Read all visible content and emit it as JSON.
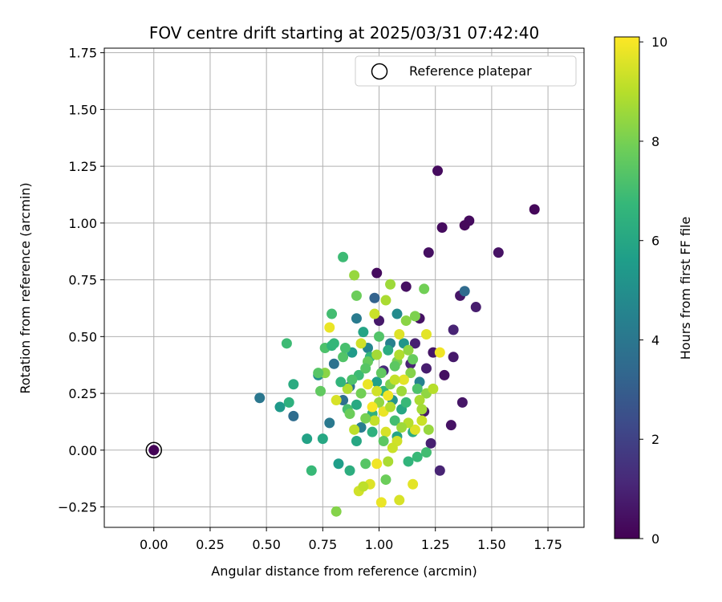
{
  "chart_data": {
    "type": "scatter",
    "title": "FOV centre drift starting at 2025/03/31 07:42:40",
    "xlabel": "Angular distance from reference (arcmin)",
    "ylabel": "Rotation from reference (arcmin)",
    "xlim": [
      -0.22,
      1.91
    ],
    "ylim": [
      -0.34,
      1.77
    ],
    "xticks": [
      "0.00",
      "0.25",
      "0.50",
      "0.75",
      "1.00",
      "1.25",
      "1.50",
      "1.75"
    ],
    "yticks": [
      "−0.25",
      "0.00",
      "0.25",
      "0.50",
      "0.75",
      "1.00",
      "1.25",
      "1.50",
      "1.75"
    ],
    "grid": true,
    "legend": {
      "placement": "top-right",
      "entries": [
        "Reference platepar"
      ]
    },
    "reference_point": {
      "x": 0.0,
      "y": 0.0
    },
    "colorbar": {
      "label": "Hours from first FF file",
      "colormap": "viridis",
      "range": [
        0,
        10.1
      ],
      "ticks": [
        "0",
        "2",
        "4",
        "6",
        "8",
        "10"
      ]
    },
    "colormap_stops": [
      "#440154",
      "#482878",
      "#3e4989",
      "#31688e",
      "#26828e",
      "#1f9e89",
      "#35b779",
      "#6ece58",
      "#b5de2b",
      "#fde725"
    ],
    "series": [
      {
        "marker": "circle",
        "points": [
          [
            0.0,
            0.0,
            0.1
          ],
          [
            1.26,
            1.23,
            0.3
          ],
          [
            1.69,
            1.06,
            0.2
          ],
          [
            1.4,
            1.01,
            0.3
          ],
          [
            1.38,
            0.99,
            0.2
          ],
          [
            1.28,
            0.98,
            0.3
          ],
          [
            1.53,
            0.87,
            0.5
          ],
          [
            1.22,
            0.87,
            0.4
          ],
          [
            0.99,
            0.78,
            0.3
          ],
          [
            1.12,
            0.72,
            0.4
          ],
          [
            1.36,
            0.68,
            0.6
          ],
          [
            1.43,
            0.63,
            0.8
          ],
          [
            1.18,
            0.58,
            0.5
          ],
          [
            1.0,
            0.57,
            0.7
          ],
          [
            1.33,
            0.53,
            1.0
          ],
          [
            1.16,
            0.47,
            0.9
          ],
          [
            1.24,
            0.43,
            0.6
          ],
          [
            1.33,
            0.41,
            0.7
          ],
          [
            1.14,
            0.38,
            1.0
          ],
          [
            1.21,
            0.36,
            0.8
          ],
          [
            1.29,
            0.33,
            0.4
          ],
          [
            1.37,
            0.21,
            0.6
          ],
          [
            1.2,
            0.17,
            0.7
          ],
          [
            1.32,
            0.11,
            0.5
          ],
          [
            1.23,
            0.03,
            0.9
          ],
          [
            1.27,
            -0.09,
            1.0
          ],
          [
            1.02,
            0.35,
            1.2
          ],
          [
            1.38,
            0.7,
            3.5
          ],
          [
            0.98,
            0.67,
            3.2
          ],
          [
            0.47,
            0.23,
            4.0
          ],
          [
            0.62,
            0.15,
            3.6
          ],
          [
            0.8,
            0.38,
            3.8
          ],
          [
            0.9,
            0.58,
            4.2
          ],
          [
            1.05,
            0.47,
            4.4
          ],
          [
            0.87,
            0.28,
            3.9
          ],
          [
            0.95,
            0.45,
            4.6
          ],
          [
            1.08,
            0.6,
            4.8
          ],
          [
            0.92,
            0.1,
            4.3
          ],
          [
            0.73,
            0.33,
            5.0
          ],
          [
            1.18,
            0.3,
            4.5
          ],
          [
            0.78,
            0.12,
            4.1
          ],
          [
            0.84,
            0.22,
            3.7
          ],
          [
            0.56,
            0.19,
            5.4
          ],
          [
            0.68,
            0.05,
            5.8
          ],
          [
            0.82,
            -0.06,
            5.6
          ],
          [
            0.62,
            0.29,
            6.2
          ],
          [
            0.6,
            0.21,
            6.4
          ],
          [
            0.7,
            -0.09,
            6.8
          ],
          [
            0.84,
            0.85,
            6.9
          ],
          [
            0.59,
            0.47,
            6.9
          ],
          [
            0.79,
            0.6,
            7.0
          ],
          [
            0.87,
            -0.09,
            6.3
          ],
          [
            0.75,
            0.05,
            6.0
          ],
          [
            0.93,
            0.52,
            5.9
          ],
          [
            0.88,
            0.43,
            5.5
          ],
          [
            1.06,
            0.22,
            5.2
          ],
          [
            0.99,
            0.3,
            5.7
          ],
          [
            1.11,
            0.47,
            5.3
          ],
          [
            0.76,
            0.45,
            7.2
          ],
          [
            0.74,
            0.26,
            7.6
          ],
          [
            0.79,
            0.46,
            6.6
          ],
          [
            0.9,
            0.2,
            6.1
          ],
          [
            0.96,
            0.41,
            6.7
          ],
          [
            1.02,
            0.26,
            6.5
          ],
          [
            1.1,
            0.18,
            6.0
          ],
          [
            1.15,
            0.08,
            6.2
          ],
          [
            1.08,
            0.06,
            5.9
          ],
          [
            0.97,
            0.16,
            6.4
          ],
          [
            0.91,
            0.33,
            6.9
          ],
          [
            0.86,
            0.18,
            7.1
          ],
          [
            0.94,
            -0.06,
            7.4
          ],
          [
            1.03,
            -0.13,
            7.8
          ],
          [
            1.21,
            -0.01,
            7.0
          ],
          [
            1.13,
            -0.05,
            6.6
          ],
          [
            1.17,
            -0.03,
            6.8
          ],
          [
            0.81,
            -0.27,
            8.2
          ],
          [
            1.04,
            -0.05,
            8.8
          ],
          [
            1.08,
            0.39,
            8.0
          ],
          [
            1.14,
            0.34,
            8.2
          ],
          [
            1.21,
            0.25,
            8.4
          ],
          [
            0.89,
            0.77,
            8.5
          ],
          [
            0.9,
            0.68,
            7.8
          ],
          [
            1.05,
            0.73,
            8.6
          ],
          [
            1.09,
            0.42,
            8.9
          ],
          [
            1.12,
            0.57,
            8.3
          ],
          [
            1.16,
            0.59,
            8.1
          ],
          [
            1.2,
            0.71,
            7.9
          ],
          [
            0.99,
            0.42,
            8.7
          ],
          [
            1.03,
            0.66,
            8.8
          ],
          [
            1.07,
            0.37,
            7.5
          ],
          [
            0.95,
            0.39,
            7.7
          ],
          [
            0.84,
            0.41,
            7.3
          ],
          [
            0.92,
            0.25,
            7.9
          ],
          [
            1.0,
            0.21,
            8.4
          ],
          [
            1.1,
            0.26,
            8.6
          ],
          [
            1.18,
            0.22,
            8.8
          ],
          [
            1.24,
            0.27,
            9.0
          ],
          [
            0.78,
            0.54,
            9.8
          ],
          [
            0.92,
            0.47,
            9.4
          ],
          [
            0.98,
            0.6,
            9.3
          ],
          [
            1.09,
            0.51,
            9.6
          ],
          [
            1.21,
            0.51,
            9.7
          ],
          [
            1.27,
            0.43,
            9.9
          ],
          [
            0.81,
            0.22,
            9.5
          ],
          [
            0.95,
            0.29,
            9.8
          ],
          [
            1.04,
            0.24,
            9.9
          ],
          [
            1.11,
            0.31,
            9.7
          ],
          [
            1.16,
            0.09,
            9.6
          ],
          [
            1.08,
            0.04,
            9.4
          ],
          [
            0.98,
            0.13,
            9.2
          ],
          [
            0.89,
            0.09,
            9.1
          ],
          [
            1.03,
            0.08,
            9.5
          ],
          [
            0.91,
            -0.18,
            9.4
          ],
          [
            0.96,
            -0.15,
            9.6
          ],
          [
            1.01,
            -0.23,
            9.8
          ],
          [
            1.09,
            -0.22,
            9.5
          ],
          [
            1.15,
            -0.15,
            9.7
          ],
          [
            0.99,
            -0.06,
            9.9
          ],
          [
            1.06,
            0.01,
            9.3
          ],
          [
            0.93,
            -0.16,
            9.1
          ],
          [
            1.02,
            0.17,
            9.8
          ],
          [
            0.97,
            0.19,
            10.0
          ],
          [
            1.13,
            0.12,
            9.0
          ],
          [
            0.86,
            0.27,
            8.9
          ],
          [
            1.19,
            0.18,
            8.7
          ],
          [
            1.22,
            0.09,
            8.5
          ],
          [
            0.76,
            0.34,
            8.3
          ],
          [
            1.05,
            0.29,
            8.1
          ],
          [
            1.01,
            0.34,
            7.6
          ],
          [
            0.94,
            0.36,
            7.4
          ],
          [
            0.88,
            0.31,
            7.2
          ],
          [
            1.07,
            0.13,
            7.0
          ],
          [
            1.12,
            0.21,
            6.8
          ],
          [
            0.83,
            0.3,
            6.6
          ],
          [
            0.97,
            0.08,
            6.4
          ],
          [
            1.04,
            0.44,
            6.2
          ],
          [
            0.9,
            0.04,
            6.0
          ],
          [
            1.15,
            0.4,
            7.7
          ],
          [
            0.85,
            0.45,
            7.1
          ],
          [
            0.8,
            0.47,
            6.7
          ],
          [
            1.0,
            0.5,
            7.3
          ],
          [
            1.13,
            0.44,
            8.4
          ],
          [
            1.07,
            0.31,
            9.2
          ],
          [
            0.99,
            0.26,
            9.4
          ],
          [
            1.19,
            0.13,
            9.3
          ],
          [
            1.05,
            0.19,
            8.9
          ],
          [
            1.1,
            0.1,
            8.6
          ],
          [
            0.94,
            0.14,
            8.0
          ],
          [
            0.87,
            0.16,
            7.8
          ],
          [
            1.02,
            0.04,
            7.5
          ],
          [
            1.17,
            0.27,
            7.2
          ],
          [
            0.73,
            0.34,
            7.4
          ]
        ]
      }
    ]
  }
}
